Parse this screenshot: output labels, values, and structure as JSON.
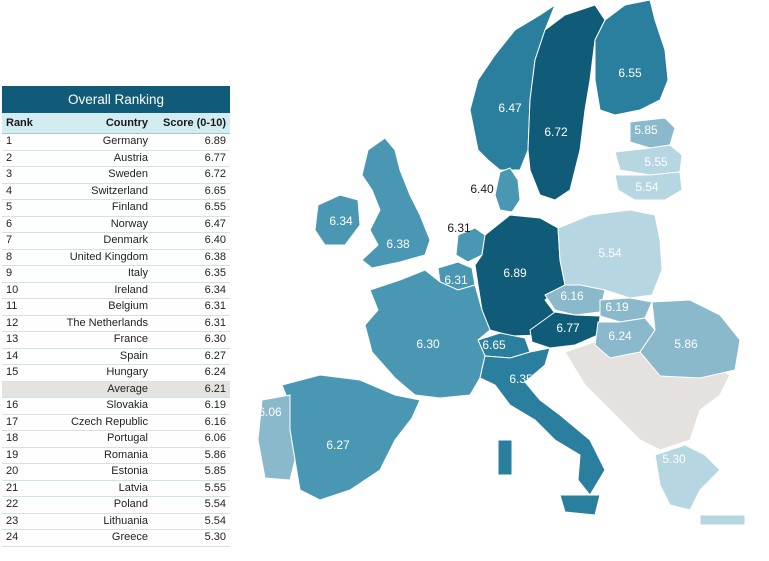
{
  "table": {
    "title": "Overall Ranking",
    "headers": {
      "rank": "Rank",
      "country": "Country",
      "score": "Score (0-10)"
    },
    "rows": [
      {
        "rank": "1",
        "country": "Germany",
        "score": "6.89"
      },
      {
        "rank": "2",
        "country": "Austria",
        "score": "6.77"
      },
      {
        "rank": "3",
        "country": "Sweden",
        "score": "6.72"
      },
      {
        "rank": "4",
        "country": "Switzerland",
        "score": "6.65"
      },
      {
        "rank": "5",
        "country": "Finland",
        "score": "6.55"
      },
      {
        "rank": "6",
        "country": "Norway",
        "score": "6.47"
      },
      {
        "rank": "7",
        "country": "Denmark",
        "score": "6.40"
      },
      {
        "rank": "8",
        "country": "United Kingdom",
        "score": "6.38"
      },
      {
        "rank": "9",
        "country": "Italy",
        "score": "6.35"
      },
      {
        "rank": "10",
        "country": "Ireland",
        "score": "6.34"
      },
      {
        "rank": "11",
        "country": "Belgium",
        "score": "6.31"
      },
      {
        "rank": "12",
        "country": "The Netherlands",
        "score": "6.31"
      },
      {
        "rank": "13",
        "country": "France",
        "score": "6.30"
      },
      {
        "rank": "14",
        "country": "Spain",
        "score": "6.27"
      },
      {
        "rank": "15",
        "country": "Hungary",
        "score": "6.24"
      },
      {
        "rank": "",
        "country": "Average",
        "score": "6.21",
        "highlight": true
      },
      {
        "rank": "16",
        "country": "Slovakia",
        "score": "6.19"
      },
      {
        "rank": "17",
        "country": "Czech Republic",
        "score": "6.16"
      },
      {
        "rank": "18",
        "country": "Portugal",
        "score": "6.06"
      },
      {
        "rank": "19",
        "country": "Romania",
        "score": "5.86"
      },
      {
        "rank": "20",
        "country": "Estonia",
        "score": "5.85"
      },
      {
        "rank": "21",
        "country": "Latvia",
        "score": "5.55"
      },
      {
        "rank": "22",
        "country": "Poland",
        "score": "5.54"
      },
      {
        "rank": "23",
        "country": "Lithuania",
        "score": "5.54"
      },
      {
        "rank": "24",
        "country": "Greece",
        "score": "5.30"
      }
    ]
  },
  "map": {
    "colors": {
      "darkest": "#0f5b78",
      "dark": "#2a7f9e",
      "medium": "#4a97b3",
      "light": "#8ab9cc",
      "lighter": "#b6d6e2",
      "no_data": "#e4e1de",
      "border": "#ffffff"
    },
    "regions": [
      {
        "id": "norway",
        "value": "6.47",
        "shade": "dark"
      },
      {
        "id": "sweden",
        "value": "6.72",
        "shade": "darkest"
      },
      {
        "id": "finland",
        "value": "6.55",
        "shade": "dark"
      },
      {
        "id": "estonia",
        "value": "5.85",
        "shade": "light"
      },
      {
        "id": "latvia",
        "value": "5.55",
        "shade": "lighter"
      },
      {
        "id": "lithuania",
        "value": "5.54",
        "shade": "lighter"
      },
      {
        "id": "denmark",
        "value": "6.40",
        "shade": "medium"
      },
      {
        "id": "ireland",
        "value": "6.34",
        "shade": "medium"
      },
      {
        "id": "united-kingdom",
        "value": "6.38",
        "shade": "medium"
      },
      {
        "id": "netherlands",
        "value": "6.31",
        "shade": "medium"
      },
      {
        "id": "belgium",
        "value": "6.31",
        "shade": "medium"
      },
      {
        "id": "germany",
        "value": "6.89",
        "shade": "darkest"
      },
      {
        "id": "poland",
        "value": "5.54",
        "shade": "lighter"
      },
      {
        "id": "czech-republic",
        "value": "6.16",
        "shade": "light"
      },
      {
        "id": "slovakia",
        "value": "6.19",
        "shade": "light"
      },
      {
        "id": "austria",
        "value": "6.77",
        "shade": "darkest"
      },
      {
        "id": "hungary",
        "value": "6.24",
        "shade": "light"
      },
      {
        "id": "switzerland",
        "value": "6.65",
        "shade": "dark"
      },
      {
        "id": "france",
        "value": "6.30",
        "shade": "medium"
      },
      {
        "id": "italy",
        "value": "6.35",
        "shade": "dark"
      },
      {
        "id": "spain",
        "value": "6.27",
        "shade": "medium"
      },
      {
        "id": "portugal",
        "value": "6.06",
        "shade": "light"
      },
      {
        "id": "romania",
        "value": "5.86",
        "shade": "light"
      },
      {
        "id": "greece",
        "value": "5.30",
        "shade": "lighter"
      }
    ]
  }
}
